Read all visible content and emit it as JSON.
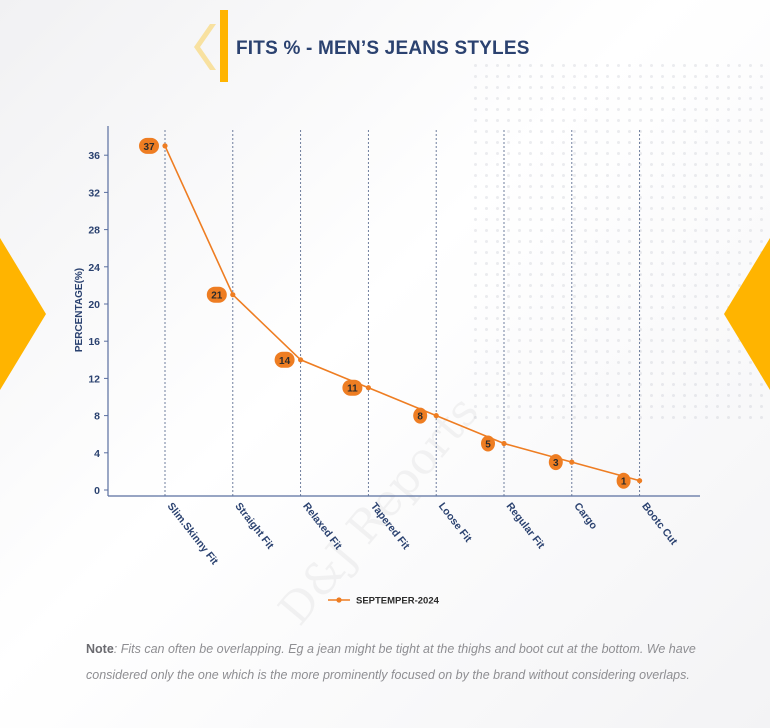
{
  "page": {
    "title": "FITS % - MEN’S JEANS STYLES",
    "note_label": "Note",
    "note_text": ": Fits can often be overlapping. Eg a jean might be tight at the thighs and boot cut at the bottom. We have considered only the one which is the more prominently focused on by the brand without considering overlaps.",
    "watermark": "D&J Reports"
  },
  "colors": {
    "accent": "#ffb400",
    "title": "#2b4270",
    "series": "#ee7d22",
    "axis": "#5a6fa0",
    "grid": "#2b4270"
  },
  "chart_data": {
    "type": "line",
    "title": "",
    "xlabel": "",
    "ylabel": "PERCENTAGE(%)",
    "categories": [
      "Slim.Skinny Fit",
      "Straight Fit",
      "Relaxed Fit",
      "Tapered Fit",
      "Loose Fit",
      "Regular Fit",
      "Cargo",
      "Bootc Cut"
    ],
    "series": [
      {
        "name": "SEPTEMPER-2024",
        "values": [
          37,
          21,
          14,
          11,
          8,
          5,
          3,
          1
        ]
      }
    ],
    "ylim": [
      0,
      36
    ],
    "yticks": [
      0,
      4,
      8,
      12,
      16,
      20,
      24,
      28,
      32,
      36
    ],
    "grid": "vertical dashed",
    "legend": "bottom-center",
    "data_labels": true
  }
}
